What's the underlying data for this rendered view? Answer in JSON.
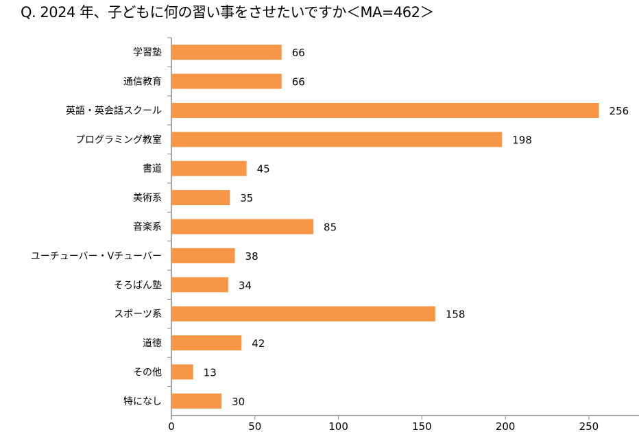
{
  "chart_data": {
    "type": "bar",
    "orientation": "horizontal",
    "title": "Q. 2024 年、子どもに何の習い事をさせたいですか＜MA=462＞",
    "xlabel": "",
    "ylabel": "",
    "categories": [
      "学習塾",
      "通信教育",
      "英語・英会話スクール",
      "プログラミング教室",
      "書道",
      "美術系",
      "音楽系",
      "ユーチューバー・Vチューバー",
      "そろばん塾",
      "スポーツ系",
      "道徳",
      "その他",
      "特になし"
    ],
    "values": [
      66,
      66,
      256,
      198,
      45,
      35,
      85,
      38,
      34,
      158,
      42,
      13,
      30
    ],
    "xlim": [
      0,
      280
    ],
    "xticks": [
      0,
      50,
      100,
      150,
      200,
      250
    ],
    "grid": false,
    "legend": "none",
    "bar_color": "#F79646"
  }
}
